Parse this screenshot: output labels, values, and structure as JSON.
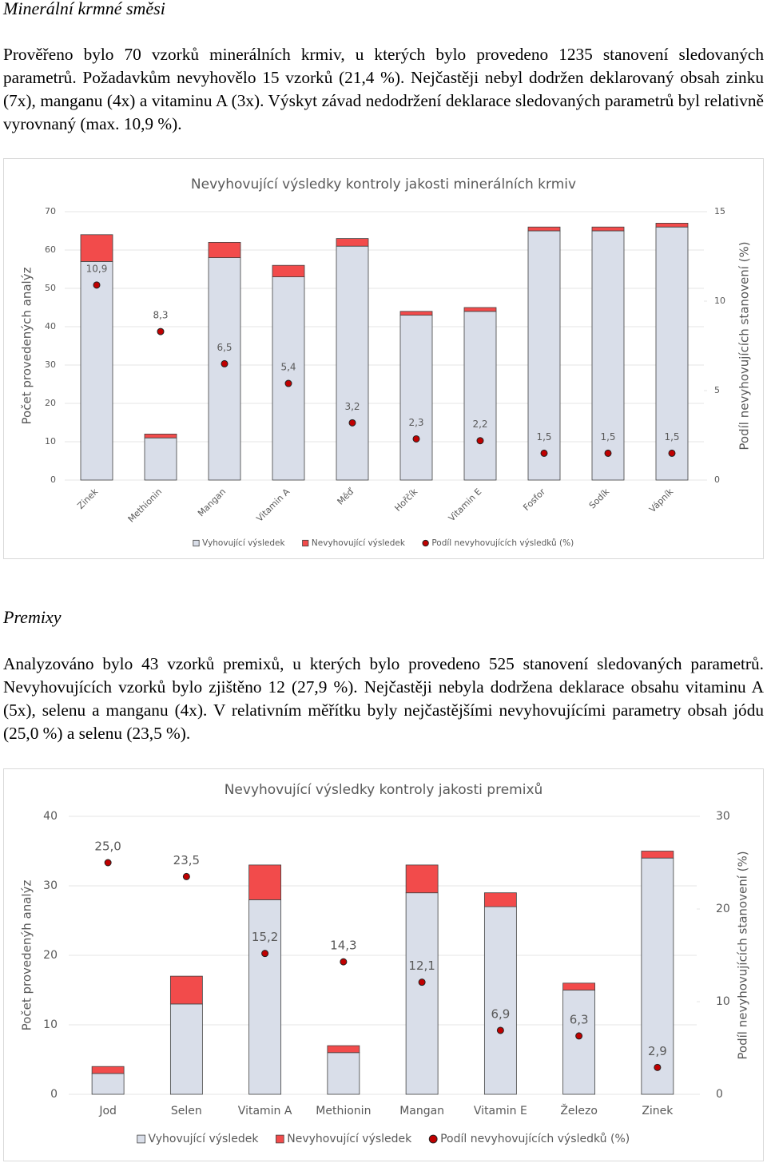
{
  "section1": {
    "heading": "Minerální krmné směsi",
    "paragraph": "Prověřeno bylo 70 vzorků minerálních krmiv, u kterých bylo provedeno 1235 stanovení sledovaných parametrů. Požadavkům nevyhovělo 15 vzorků (21,4 %). Nejčastěji nebyl dodržen deklarovaný obsah zinku (7x), manganu (4x) a vitaminu A (3x). Výskyt závad nedodržení deklarace sledovaných parametrů byl relativně vyrovnaný (max. 10,9 %)."
  },
  "section2": {
    "heading": "Premixy",
    "paragraph": "Analyzováno bylo 43 vzorků premixů, u kterých bylo provedeno 525 stanovení sledovaných parametrů. Nevyhovujících vzorků bylo zjištěno 12 (27,9 %). Nejčastěji nebyla dodržena deklarace obsahu vitaminu A (5x), selenu a manganu (4x). V relativním měřítku byly nejčastějšími nevyhovujícími parametry obsah jódu (25,0 %) a selenu (23,5 %)."
  },
  "chart_data": [
    {
      "type": "bar",
      "stacked": true,
      "title": "Nevyhovující výsledky kontroly jakosti minerálních krmiv",
      "y_label": "Počet provedených analýz",
      "y2_label": "Podíl nevyhovujících stanovení (%)",
      "categories": [
        "Zinek",
        "Methionin",
        "Mangan",
        "Vitamin A",
        "Měď",
        "Hořčík",
        "Vitamin E",
        "Fosfor",
        "Sodík",
        "Vápník"
      ],
      "series": [
        {
          "name": "Vyhovující výsledek",
          "color": "#d9dee9",
          "values": [
            57,
            11,
            58,
            53,
            61,
            43,
            44,
            65,
            65,
            66
          ]
        },
        {
          "name": "Nevyhovující výsledek",
          "color": "#f24b4b",
          "values": [
            7,
            1,
            4,
            3,
            2,
            1,
            1,
            1,
            1,
            1
          ]
        },
        {
          "name": "Podíl nevyhovujících výsledků (%)",
          "color": "#c00000",
          "type": "scatter",
          "axis": "y2",
          "values": [
            10.9,
            8.3,
            6.5,
            5.4,
            3.2,
            2.3,
            2.2,
            1.5,
            1.5,
            1.5
          ],
          "value_labels": [
            "10,9",
            "8,3",
            "6,5",
            "5,4",
            "3,2",
            "2,3",
            "2,2",
            "1,5",
            "1,5",
            "1,5"
          ]
        }
      ],
      "ylim": [
        0,
        70
      ],
      "yticks": [
        0,
        10,
        20,
        30,
        40,
        50,
        60,
        70
      ],
      "y2lim": [
        0,
        15
      ],
      "y2ticks": [
        0,
        5,
        10,
        15
      ],
      "grid": true,
      "legend": "bottom"
    },
    {
      "type": "bar",
      "stacked": true,
      "title": "Nevyhovující výsledky kontroly jakosti premixů",
      "y_label": "Počet provedenýh analýz",
      "y2_label": "Podíl nevyhovujících stanovení (%)",
      "categories": [
        "Jod",
        "Selen",
        "Vitamin A",
        "Methionin",
        "Mangan",
        "Vitamin E",
        "Železo",
        "Zinek"
      ],
      "series": [
        {
          "name": "Vyhovující výsledek",
          "color": "#d9dee9",
          "values": [
            3,
            13,
            28,
            6,
            29,
            27,
            15,
            34
          ]
        },
        {
          "name": "Nevyhovující výsledek",
          "color": "#f24b4b",
          "values": [
            1,
            4,
            5,
            1,
            4,
            2,
            1,
            1
          ]
        },
        {
          "name": "Podíl nevyhovujících výsledků (%)",
          "color": "#c00000",
          "type": "scatter",
          "axis": "y2",
          "values": [
            25.0,
            23.5,
            15.2,
            14.3,
            12.1,
            6.9,
            6.3,
            2.9
          ],
          "value_labels": [
            "25,0",
            "23,5",
            "15,2",
            "14,3",
            "12,1",
            "6,9",
            "6,3",
            "2,9"
          ]
        }
      ],
      "ylim": [
        0,
        40
      ],
      "yticks": [
        0,
        10,
        20,
        30,
        40
      ],
      "y2lim": [
        0,
        30
      ],
      "y2ticks": [
        0,
        10,
        20,
        30
      ],
      "grid": true,
      "legend": "bottom"
    }
  ]
}
